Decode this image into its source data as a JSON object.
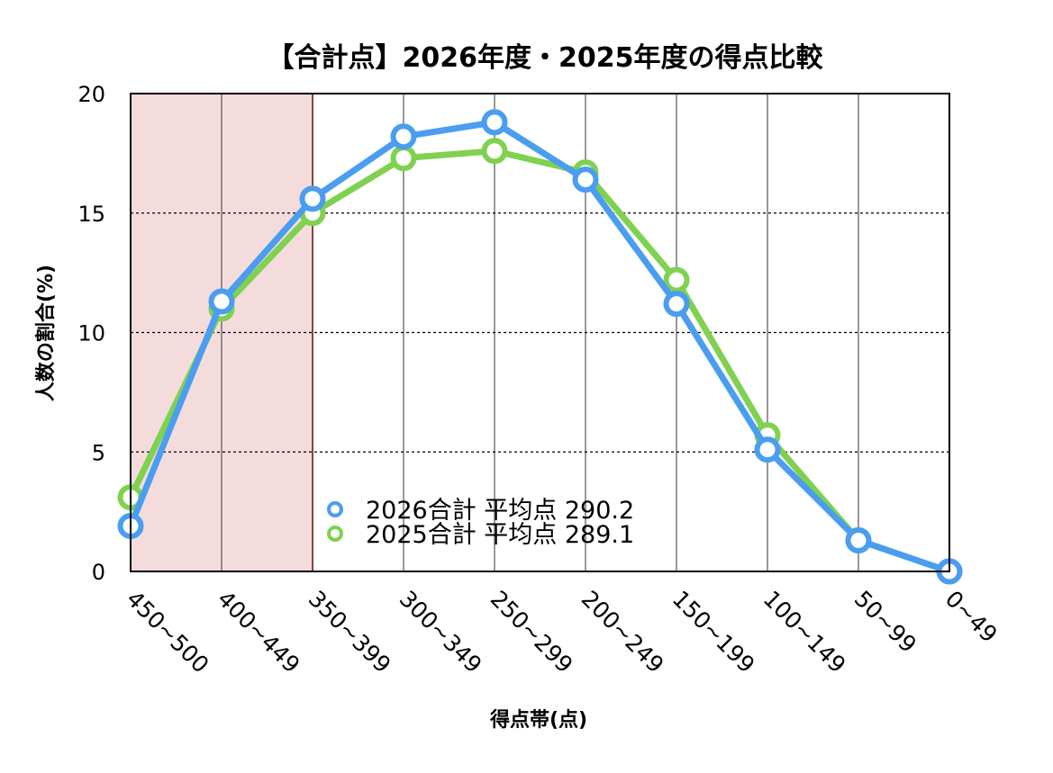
{
  "chart_data": {
    "type": "line",
    "title": "【合計点】2026年度・2025年度の得点比較",
    "xlabel": "得点帯(点)",
    "ylabel": "人数の割合(%)",
    "categories": [
      "450~500",
      "400~449",
      "350~399",
      "300~349",
      "250~299",
      "200~249",
      "150~199",
      "100~149",
      "50~99",
      "0~49"
    ],
    "ylim": [
      0,
      20
    ],
    "yticks": [
      "0",
      "5",
      "10",
      "15",
      "20"
    ],
    "grid": {
      "horizontal": "dotted",
      "vertical": "solid"
    },
    "highlight": {
      "from_category": "450~500",
      "to_category": "350~399",
      "color": "#f5dcdc",
      "border": "#b83a2a"
    },
    "legend_position": "bottom-center",
    "series": [
      {
        "name": "2025合計 平均点 289.1",
        "color": "#7fd14f",
        "values": [
          3.1,
          11.0,
          15.0,
          17.3,
          17.6,
          16.7,
          12.2,
          5.7,
          1.3,
          0.0
        ]
      },
      {
        "name": "2026合計 平均点 290.2",
        "color": "#4a9df0",
        "values": [
          1.9,
          11.3,
          15.6,
          18.2,
          18.8,
          16.4,
          11.2,
          5.1,
          1.3,
          0.0
        ]
      }
    ],
    "legend_order": [
      1,
      0
    ]
  }
}
